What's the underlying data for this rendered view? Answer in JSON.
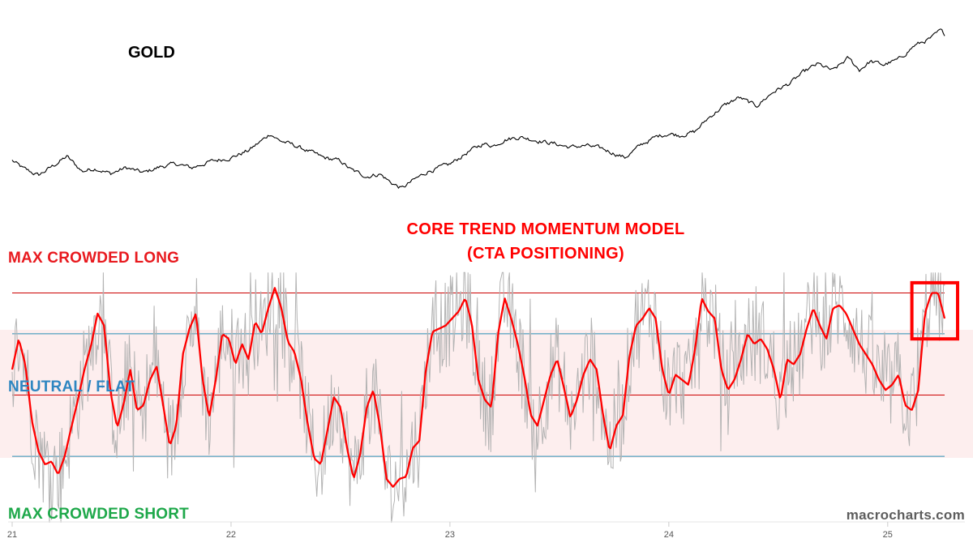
{
  "labels": {
    "gold": "GOLD",
    "model_title_line1": "CORE TREND MOMENTUM MODEL",
    "model_title_line2": "(CTA POSITIONING)",
    "max_long": "MAX CROWDED LONG",
    "neutral": "NEUTRAL / FLAT",
    "max_short": "MAX CROWDED SHORT",
    "watermark": "macrocharts.com"
  },
  "colors": {
    "gold_line": "#000000",
    "momentum_line": "#ff0000",
    "raw_signal": "#b3b3b3",
    "threshold_red": "#cc0000",
    "threshold_blue": "#2a8fb5",
    "neutral_band": "#fdeeee",
    "highlight_box": "#ff0000"
  },
  "chart_data": {
    "type": "line",
    "x_ticks": [
      "21",
      "22",
      "23",
      "24",
      "25"
    ],
    "xlim": [
      21.0,
      25.26
    ],
    "gold_series": {
      "x": [
        21.0,
        21.05,
        21.12,
        21.18,
        21.25,
        21.32,
        21.38,
        21.45,
        21.52,
        21.6,
        21.68,
        21.75,
        21.82,
        21.9,
        22.0,
        22.08,
        22.15,
        22.18,
        22.22,
        22.28,
        22.35,
        22.42,
        22.5,
        22.55,
        22.62,
        22.68,
        22.73,
        22.78,
        22.83,
        22.9,
        23.0,
        23.08,
        23.15,
        23.2,
        23.25,
        23.32,
        23.4,
        23.48,
        23.55,
        23.62,
        23.7,
        23.8,
        23.88,
        23.95,
        24.0,
        24.05,
        24.12,
        24.18,
        24.25,
        24.32,
        24.4,
        24.48,
        24.55,
        24.62,
        24.68,
        24.75,
        24.82,
        24.87,
        24.92,
        24.98,
        25.05,
        25.12,
        25.2,
        25.24,
        25.26
      ],
      "y": [
        0.245,
        0.198,
        0.158,
        0.208,
        0.268,
        0.182,
        0.2,
        0.168,
        0.203,
        0.173,
        0.21,
        0.225,
        0.202,
        0.237,
        0.262,
        0.303,
        0.37,
        0.402,
        0.362,
        0.337,
        0.302,
        0.262,
        0.242,
        0.189,
        0.152,
        0.167,
        0.117,
        0.082,
        0.127,
        0.182,
        0.222,
        0.292,
        0.342,
        0.332,
        0.367,
        0.382,
        0.362,
        0.342,
        0.322,
        0.332,
        0.312,
        0.262,
        0.342,
        0.387,
        0.402,
        0.392,
        0.412,
        0.492,
        0.562,
        0.612,
        0.562,
        0.647,
        0.692,
        0.762,
        0.807,
        0.767,
        0.842,
        0.772,
        0.822,
        0.802,
        0.832,
        0.912,
        0.957,
        1.0,
        0.98
      ]
    },
    "momentum_model": {
      "ylim": [
        -1.25,
        1.25
      ],
      "thresholds": {
        "max_long": 1.0,
        "upper_neutral": 0.6,
        "neutral": 0.0,
        "lower_neutral": -0.6,
        "max_short": -1.0
      },
      "x": [
        21.0,
        21.03,
        21.06,
        21.09,
        21.12,
        21.15,
        21.18,
        21.21,
        21.24,
        21.27,
        21.3,
        21.33,
        21.36,
        21.39,
        21.42,
        21.45,
        21.48,
        21.51,
        21.54,
        21.57,
        21.6,
        21.63,
        21.66,
        21.69,
        21.72,
        21.75,
        21.78,
        21.81,
        21.84,
        21.87,
        21.9,
        21.93,
        21.96,
        21.99,
        22.02,
        22.05,
        22.08,
        22.11,
        22.14,
        22.17,
        22.2,
        22.23,
        22.26,
        22.29,
        22.32,
        22.35,
        22.38,
        22.41,
        22.44,
        22.47,
        22.5,
        22.53,
        22.56,
        22.59,
        22.62,
        22.65,
        22.68,
        22.71,
        22.74,
        22.77,
        22.8,
        22.83,
        22.86,
        22.89,
        22.92,
        22.95,
        22.98,
        23.01,
        23.04,
        23.07,
        23.1,
        23.13,
        23.16,
        23.19,
        23.22,
        23.25,
        23.28,
        23.31,
        23.34,
        23.37,
        23.4,
        23.43,
        23.46,
        23.49,
        23.52,
        23.55,
        23.58,
        23.61,
        23.64,
        23.67,
        23.7,
        23.73,
        23.76,
        23.79,
        23.82,
        23.85,
        23.88,
        23.91,
        23.94,
        23.97,
        24.0,
        24.03,
        24.06,
        24.09,
        24.12,
        24.15,
        24.18,
        24.21,
        24.24,
        24.27,
        24.3,
        24.33,
        24.36,
        24.39,
        24.42,
        24.45,
        24.48,
        24.51,
        24.54,
        24.57,
        24.6,
        24.63,
        24.66,
        24.69,
        24.72,
        24.75,
        24.78,
        24.81,
        24.84,
        24.87,
        24.9,
        24.93,
        24.96,
        24.99,
        25.02,
        25.05,
        25.08,
        25.11,
        25.14,
        25.17,
        25.2,
        25.23,
        25.26
      ],
      "values": [
        0.25,
        0.55,
        0.3,
        -0.25,
        -0.55,
        -0.68,
        -0.65,
        -0.78,
        -0.6,
        -0.32,
        -0.05,
        0.25,
        0.48,
        0.8,
        0.68,
        0.02,
        -0.32,
        -0.08,
        0.25,
        -0.15,
        -0.1,
        0.15,
        0.28,
        -0.1,
        -0.5,
        -0.3,
        0.4,
        0.65,
        0.8,
        0.15,
        -0.22,
        0.15,
        0.6,
        0.55,
        0.3,
        0.5,
        0.35,
        0.72,
        0.6,
        0.85,
        1.05,
        0.85,
        0.52,
        0.42,
        0.15,
        -0.28,
        -0.62,
        -0.68,
        -0.35,
        -0.02,
        -0.12,
        -0.52,
        -0.82,
        -0.58,
        -0.12,
        0.05,
        -0.3,
        -0.82,
        -0.9,
        -0.82,
        -0.8,
        -0.52,
        -0.45,
        0.25,
        0.62,
        0.65,
        0.68,
        0.75,
        0.82,
        0.95,
        0.7,
        0.15,
        -0.05,
        -0.12,
        0.6,
        0.95,
        0.75,
        0.5,
        0.18,
        -0.2,
        -0.3,
        -0.05,
        0.2,
        0.35,
        0.08,
        -0.22,
        -0.05,
        0.2,
        0.35,
        0.25,
        -0.2,
        -0.55,
        -0.3,
        -0.2,
        0.38,
        0.68,
        0.75,
        0.85,
        0.75,
        0.25,
        0.0,
        0.2,
        0.15,
        0.1,
        0.45,
        0.95,
        0.82,
        0.75,
        0.25,
        0.05,
        0.15,
        0.35,
        0.6,
        0.5,
        0.55,
        0.45,
        0.25,
        -0.05,
        0.35,
        0.3,
        0.4,
        0.65,
        0.85,
        0.68,
        0.55,
        0.85,
        0.88,
        0.8,
        0.65,
        0.5,
        0.4,
        0.3,
        0.15,
        0.05,
        0.1,
        0.2,
        -0.1,
        -0.15,
        0.05,
        0.8,
        1.0,
        1.0,
        0.75
      ]
    },
    "raw_signal_amplitude": [
      -1.25,
      1.2
    ],
    "highlight_box_range": {
      "x": [
        25.14,
        25.26
      ],
      "y": [
        0.55,
        1.1
      ]
    }
  }
}
